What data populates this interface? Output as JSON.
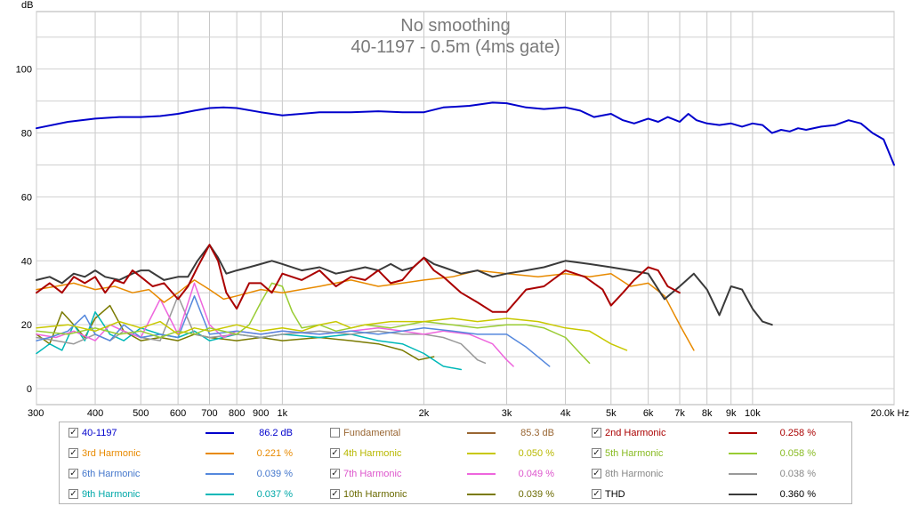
{
  "chart_data": {
    "type": "line",
    "title": "No smoothing",
    "subtitle": "40-1197 -  0.5m  (4ms gate)",
    "ylabel": "dB",
    "xunit": "Hz",
    "xscale": "log",
    "xlim": [
      300,
      20000
    ],
    "ylim": [
      -5,
      118
    ],
    "grid": true,
    "legend_position": "bottom",
    "x_ticks": [
      {
        "v": 300,
        "label": "300"
      },
      {
        "v": 400,
        "label": "400"
      },
      {
        "v": 500,
        "label": "500"
      },
      {
        "v": 600,
        "label": "600"
      },
      {
        "v": 700,
        "label": "700"
      },
      {
        "v": 800,
        "label": "800"
      },
      {
        "v": 900,
        "label": "900"
      },
      {
        "v": 1000,
        "label": "1k"
      },
      {
        "v": 2000,
        "label": "2k"
      },
      {
        "v": 3000,
        "label": "3k"
      },
      {
        "v": 4000,
        "label": "4k"
      },
      {
        "v": 5000,
        "label": "5k"
      },
      {
        "v": 6000,
        "label": "6k"
      },
      {
        "v": 7000,
        "label": "7k"
      },
      {
        "v": 8000,
        "label": "8k"
      },
      {
        "v": 9000,
        "label": "9k"
      },
      {
        "v": 10000,
        "label": "10k"
      },
      {
        "v": 20000,
        "label": "20.0k Hz"
      }
    ],
    "y_ticks": [
      {
        "v": 0,
        "label": "0"
      },
      {
        "v": 20,
        "label": "20"
      },
      {
        "v": 40,
        "label": "40"
      },
      {
        "v": 60,
        "label": "60"
      },
      {
        "v": 80,
        "label": "80"
      },
      {
        "v": 100,
        "label": "100"
      }
    ],
    "series": [
      {
        "name": "40-1197",
        "color": "#0000cc",
        "width": 2,
        "value": "86.2 dB",
        "x": [
          300,
          350,
          400,
          450,
          500,
          550,
          600,
          650,
          700,
          750,
          800,
          900,
          1000,
          1200,
          1400,
          1600,
          1800,
          2000,
          2200,
          2500,
          2800,
          3000,
          3300,
          3600,
          4000,
          4300,
          4600,
          5000,
          5300,
          5600,
          6000,
          6300,
          6600,
          7000,
          7300,
          7600,
          8000,
          8500,
          9000,
          9500,
          10000,
          10500,
          11000,
          11500,
          12000,
          12500,
          13000,
          14000,
          15000,
          16000,
          17000,
          18000,
          19000,
          20000
        ],
        "y": [
          81.5,
          83.5,
          84.5,
          85,
          85,
          85.3,
          86,
          87,
          87.8,
          88,
          87.8,
          86.5,
          85.5,
          86.5,
          86.5,
          86.8,
          86.5,
          86.5,
          88,
          88.5,
          89.5,
          89.3,
          88,
          87.5,
          88,
          87,
          85,
          86,
          84,
          83,
          84.5,
          83.5,
          85,
          83.5,
          86,
          84,
          83,
          82.5,
          83,
          82,
          83,
          82.5,
          80,
          81,
          80.5,
          81.5,
          81,
          82,
          82.5,
          84,
          83,
          80,
          78,
          70
        ]
      },
      {
        "name": "Fundamental",
        "color": "#996633",
        "width": 1.5,
        "value": "85.3 dB",
        "unchecked": true,
        "x": [],
        "y": []
      },
      {
        "name": "2nd Harmonic",
        "color": "#aa0000",
        "width": 2,
        "value": "0.258 %",
        "x": [
          300,
          320,
          340,
          360,
          380,
          400,
          420,
          440,
          460,
          480,
          500,
          530,
          560,
          600,
          630,
          660,
          700,
          730,
          760,
          800,
          850,
          900,
          950,
          1000,
          1100,
          1200,
          1300,
          1400,
          1500,
          1600,
          1700,
          1800,
          1900,
          2000,
          2100,
          2200,
          2400,
          2600,
          2800,
          3000,
          3300,
          3600,
          4000,
          4400,
          4800,
          5000,
          5300,
          5600,
          6000,
          6300,
          6600,
          7000
        ],
        "y": [
          30,
          33,
          30,
          35,
          33,
          35,
          30,
          34,
          33,
          37,
          35,
          32,
          33,
          28,
          32,
          38,
          45,
          40,
          30,
          25,
          33,
          33,
          30,
          36,
          34,
          37,
          32,
          35,
          34,
          37,
          33,
          34,
          38,
          41,
          37,
          35,
          30,
          27,
          24,
          24,
          31,
          32,
          37,
          35,
          31,
          26,
          30,
          34,
          38,
          37,
          32,
          30
        ]
      },
      {
        "name": "3rd Harmonic",
        "color": "#e88a00",
        "width": 1.5,
        "value": "0.221 %",
        "x": [
          300,
          330,
          360,
          400,
          440,
          480,
          520,
          560,
          600,
          650,
          700,
          750,
          800,
          900,
          1000,
          1200,
          1400,
          1600,
          1800,
          2000,
          2300,
          2600,
          3000,
          3500,
          4000,
          4500,
          5000,
          5500,
          6000,
          6500,
          7000,
          7500
        ],
        "y": [
          31,
          32,
          33,
          31,
          32,
          30,
          31,
          27,
          30,
          34,
          31,
          28,
          29,
          31,
          30,
          32,
          34,
          32,
          33,
          34,
          35,
          37,
          36,
          35,
          36,
          35,
          36,
          32,
          33,
          29,
          20,
          12
        ]
      },
      {
        "name": "4th Harmonic",
        "color": "#c8c800",
        "width": 1.5,
        "value": "0.050 %",
        "x": [
          300,
          350,
          400,
          450,
          500,
          550,
          600,
          650,
          700,
          800,
          900,
          1000,
          1100,
          1200,
          1300,
          1400,
          1500,
          1700,
          2000,
          2300,
          2600,
          3000,
          3500,
          4000,
          4500,
          5000,
          5400
        ],
        "y": [
          19,
          20,
          18,
          21,
          19,
          21,
          17,
          19,
          18,
          20,
          18,
          19,
          18,
          20,
          21,
          19,
          20,
          21,
          21,
          22,
          21,
          22,
          21,
          19,
          18,
          14,
          12
        ]
      },
      {
        "name": "5th Harmonic",
        "color": "#99cc33",
        "width": 1.5,
        "value": "0.058 %",
        "x": [
          300,
          350,
          400,
          450,
          500,
          550,
          600,
          650,
          700,
          800,
          850,
          900,
          950,
          1000,
          1050,
          1100,
          1200,
          1300,
          1400,
          1500,
          1700,
          2000,
          2300,
          2600,
          3000,
          3300,
          3600,
          4000,
          4300,
          4500
        ],
        "y": [
          18,
          17,
          19,
          17,
          18,
          16,
          18,
          17,
          19,
          17,
          20,
          27,
          33,
          32,
          24,
          19,
          20,
          18,
          19,
          20,
          19,
          21,
          20,
          19,
          20,
          20,
          19,
          16,
          11,
          8
        ]
      },
      {
        "name": "6th Harmonic",
        "color": "#5588dd",
        "width": 1.5,
        "value": "0.039 %",
        "x": [
          300,
          320,
          350,
          380,
          400,
          430,
          460,
          500,
          550,
          600,
          650,
          700,
          800,
          900,
          1000,
          1200,
          1400,
          1600,
          1800,
          2000,
          2300,
          2600,
          3000,
          3300,
          3700
        ],
        "y": [
          15,
          16,
          18,
          23,
          17,
          15,
          20,
          16,
          17,
          16,
          29,
          17,
          18,
          17,
          18,
          17,
          18,
          17,
          18,
          19,
          18,
          17,
          17,
          13,
          7
        ]
      },
      {
        "name": "7th Harmonic",
        "color": "#ee66dd",
        "width": 1.5,
        "value": "0.049 %",
        "x": [
          300,
          330,
          360,
          400,
          430,
          460,
          500,
          550,
          600,
          650,
          700,
          750,
          800,
          900,
          1000,
          1200,
          1400,
          1600,
          1800,
          2000,
          2200,
          2500,
          2800,
          3000,
          3100
        ],
        "y": [
          17,
          16,
          18,
          15,
          20,
          18,
          16,
          28,
          17,
          33,
          20,
          16,
          18,
          17,
          18,
          17,
          18,
          19,
          18,
          17,
          18,
          17,
          14,
          9,
          7
        ]
      },
      {
        "name": "8th Harmonic",
        "color": "#999999",
        "width": 1.5,
        "value": "0.038 %",
        "x": [
          300,
          330,
          360,
          400,
          430,
          460,
          500,
          550,
          600,
          650,
          700,
          800,
          900,
          1000,
          1200,
          1400,
          1600,
          1800,
          2000,
          2200,
          2400,
          2600,
          2700
        ],
        "y": [
          16,
          15,
          14,
          17,
          15,
          18,
          16,
          15,
          29,
          17,
          16,
          17,
          16,
          17,
          18,
          17,
          18,
          17,
          17,
          16,
          14,
          9,
          8
        ]
      },
      {
        "name": "9th Harmonic",
        "color": "#00b8b8",
        "width": 1.5,
        "value": "0.037 %",
        "x": [
          300,
          320,
          340,
          360,
          380,
          400,
          430,
          460,
          500,
          550,
          600,
          650,
          700,
          800,
          900,
          1000,
          1200,
          1400,
          1600,
          1800,
          2000,
          2200,
          2400
        ],
        "y": [
          11,
          14,
          12,
          20,
          15,
          24,
          17,
          15,
          19,
          17,
          16,
          18,
          15,
          17,
          16,
          17,
          16,
          17,
          15,
          14,
          11,
          7,
          6
        ]
      },
      {
        "name": "10th Harmonic",
        "color": "#7a7a00",
        "width": 1.5,
        "value": "0.039 %",
        "x": [
          300,
          320,
          340,
          360,
          380,
          400,
          430,
          460,
          500,
          550,
          600,
          650,
          700,
          800,
          900,
          1000,
          1200,
          1400,
          1600,
          1800,
          1950,
          2100
        ],
        "y": [
          17,
          14,
          24,
          20,
          16,
          22,
          26,
          18,
          15,
          16,
          15,
          17,
          16,
          15,
          16,
          15,
          16,
          15,
          14,
          12,
          9,
          10
        ]
      },
      {
        "name": "THD",
        "color": "#3a3a3a",
        "width": 2,
        "value": "0.360 %",
        "x": [
          300,
          320,
          340,
          360,
          380,
          400,
          420,
          450,
          480,
          500,
          520,
          560,
          600,
          630,
          660,
          700,
          730,
          760,
          800,
          850,
          900,
          950,
          1000,
          1100,
          1200,
          1300,
          1400,
          1500,
          1600,
          1700,
          1800,
          1900,
          2000,
          2100,
          2200,
          2400,
          2600,
          2800,
          3000,
          3300,
          3600,
          4000,
          4500,
          5000,
          5500,
          6000,
          6500,
          7000,
          7500,
          8000,
          8500,
          9000,
          9500,
          10000,
          10500,
          11000
        ],
        "y": [
          34,
          35,
          33,
          36,
          35,
          37,
          35,
          34,
          36,
          37,
          37,
          34,
          35,
          35,
          40,
          45,
          41,
          36,
          37,
          38,
          39,
          40,
          39,
          37,
          38,
          36,
          37,
          38,
          37,
          39,
          37,
          38,
          41,
          39,
          38,
          36,
          37,
          35,
          36,
          37,
          38,
          40,
          39,
          38,
          37,
          36,
          28,
          32,
          36,
          31,
          23,
          32,
          31,
          25,
          21,
          20
        ]
      }
    ]
  },
  "legend": [
    {
      "label": "40-1197",
      "checked": true,
      "value": "86.2 dB",
      "color": "#0000cc",
      "text_color": "#0000cc",
      "value_color": "#0000cc"
    },
    {
      "label": "Fundamental",
      "checked": false,
      "value": "85.3 dB",
      "color": "#996633",
      "text_color": "#996633",
      "value_color": "#996633"
    },
    {
      "label": "2nd Harmonic",
      "checked": true,
      "value": "0.258 %",
      "color": "#aa0000",
      "text_color": "#aa0000",
      "value_color": "#aa0000"
    },
    {
      "label": "3rd Harmonic",
      "checked": true,
      "value": "0.221 %",
      "color": "#e88a00",
      "text_color": "#e88a00",
      "value_color": "#e88a00"
    },
    {
      "label": "4th Harmonic",
      "checked": true,
      "value": "0.050 %",
      "color": "#c8c800",
      "text_color": "#b8b800",
      "value_color": "#b8b800"
    },
    {
      "label": "5th Harmonic",
      "checked": true,
      "value": "0.058 %",
      "color": "#99cc33",
      "text_color": "#88bb22",
      "value_color": "#88bb22"
    },
    {
      "label": "6th Harmonic",
      "checked": true,
      "value": "0.039 %",
      "color": "#5588dd",
      "text_color": "#4477cc",
      "value_color": "#4477cc"
    },
    {
      "label": "7th Harmonic",
      "checked": true,
      "value": "0.049 %",
      "color": "#ee66dd",
      "text_color": "#dd55cc",
      "value_color": "#dd55cc"
    },
    {
      "label": "8th Harmonic",
      "checked": true,
      "value": "0.038 %",
      "color": "#999999",
      "text_color": "#888888",
      "value_color": "#888888"
    },
    {
      "label": "9th Harmonic",
      "checked": true,
      "value": "0.037 %",
      "color": "#00b8b8",
      "text_color": "#00a8a8",
      "value_color": "#00a8a8"
    },
    {
      "label": "10th Harmonic",
      "checked": true,
      "value": "0.039 %",
      "color": "#7a7a00",
      "text_color": "#6a6a00",
      "value_color": "#6a6a00"
    },
    {
      "label": "THD",
      "checked": true,
      "value": "0.360 %",
      "color": "#3a3a3a",
      "text_color": "#000000",
      "value_color": "#000000"
    }
  ],
  "check_mark": "✓"
}
